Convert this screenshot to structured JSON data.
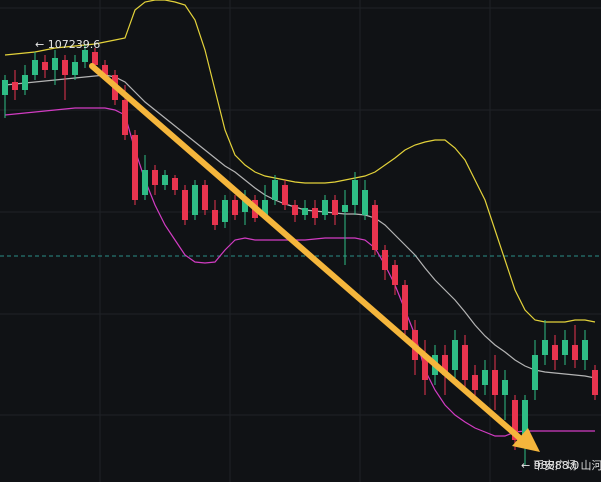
{
  "chart_data": {
    "type": "candlestick",
    "high_label": "← 107239.6",
    "low_label": "← 98888.0",
    "watermark": "币安广场 山河",
    "ylim": [
      98500,
      108140
    ],
    "up_color": "#2ebd85",
    "down_color": "#e8344e",
    "candles": {
      "open": [
        106240,
        106500,
        106340,
        106640,
        106900,
        106740,
        106940,
        106640,
        106900,
        107100,
        106840,
        106640,
        106140,
        105440,
        104240,
        104740,
        104440,
        104580,
        104340,
        103840,
        104440,
        103940,
        103700,
        104140,
        103900,
        104140,
        103840,
        104140,
        104440,
        104040,
        103840,
        103980,
        103840,
        104140,
        103900,
        104040,
        103840,
        104040,
        103140,
        102840,
        102440,
        101540,
        101040,
        100640,
        101040,
        100740,
        101240,
        100640,
        100440,
        100740,
        100240,
        100140,
        99340,
        100340,
        101040,
        101240,
        101040,
        101240,
        100940,
        100740
      ],
      "high": [
        106640,
        106740,
        106840,
        107100,
        107040,
        107140,
        107040,
        107040,
        107240,
        107180,
        106940,
        106740,
        106440,
        105540,
        105040,
        104840,
        104740,
        104640,
        104440,
        104540,
        104540,
        104140,
        104240,
        104240,
        104340,
        104240,
        104440,
        104640,
        104540,
        104140,
        104140,
        104140,
        104240,
        104240,
        104340,
        104700,
        104540,
        104140,
        103240,
        102940,
        102540,
        101740,
        101340,
        101240,
        101240,
        101540,
        101440,
        100840,
        100940,
        101040,
        100740,
        100240,
        100240,
        101340,
        101740,
        101440,
        101540,
        101640,
        101540,
        100840
      ],
      "low": [
        105780,
        106140,
        106240,
        106540,
        106580,
        106440,
        106140,
        106540,
        106780,
        106700,
        106540,
        106040,
        105340,
        104040,
        104140,
        104240,
        104340,
        104240,
        103640,
        103740,
        103840,
        103540,
        103580,
        103740,
        103640,
        103700,
        103740,
        104040,
        103940,
        103700,
        103740,
        103640,
        103740,
        103640,
        102840,
        103840,
        103740,
        103040,
        102540,
        102240,
        101340,
        100640,
        100240,
        100440,
        100240,
        100540,
        100340,
        100140,
        100240,
        99940,
        99740,
        99140,
        98840,
        100140,
        100840,
        100740,
        100840,
        100780,
        100740,
        100140
      ],
      "close": [
        106540,
        106340,
        106640,
        106940,
        106740,
        106980,
        106640,
        106900,
        107140,
        106840,
        106640,
        106140,
        105440,
        104140,
        104740,
        104440,
        104640,
        104340,
        103740,
        104440,
        103940,
        103640,
        104140,
        103840,
        104140,
        103780,
        104140,
        104540,
        104040,
        103840,
        103980,
        103780,
        104140,
        103840,
        104040,
        104540,
        104340,
        103140,
        102740,
        102440,
        101540,
        100940,
        100540,
        101040,
        100640,
        101340,
        100540,
        100340,
        100740,
        100240,
        100540,
        99340,
        100140,
        101040,
        101340,
        100940,
        101340,
        100940,
        101340,
        100240
      ]
    },
    "bands": [
      {
        "color": "#e3d23a",
        "values": [
          107040,
          107060,
          107080,
          107100,
          107140,
          107180,
          107200,
          107220,
          107240,
          107260,
          107300,
          107340,
          107380,
          107940,
          108100,
          108140,
          108140,
          108100,
          108040,
          107740,
          107140,
          106340,
          105540,
          105040,
          104840,
          104700,
          104620,
          104580,
          104540,
          104500,
          104480,
          104480,
          104480,
          104500,
          104540,
          104580,
          104620,
          104700,
          104840,
          104980,
          105140,
          105240,
          105300,
          105340,
          105340,
          105180,
          104940,
          104540,
          104140,
          103540,
          102940,
          102340,
          101940,
          101740,
          101700,
          101700,
          101700,
          101740,
          101740,
          101700
        ]
      },
      {
        "color": "#b4b4b4",
        "values": [
          106440,
          106460,
          106480,
          106500,
          106520,
          106540,
          106560,
          106580,
          106600,
          106620,
          106640,
          106600,
          106500,
          106300,
          106100,
          105940,
          105780,
          105620,
          105460,
          105300,
          105140,
          104980,
          104820,
          104700,
          104540,
          104380,
          104240,
          104140,
          104060,
          104000,
          103940,
          103920,
          103900,
          103880,
          103860,
          103860,
          103840,
          103780,
          103640,
          103440,
          103240,
          103040,
          102780,
          102540,
          102340,
          102140,
          101900,
          101640,
          101420,
          101240,
          101100,
          100940,
          100820,
          100740,
          100700,
          100680,
          100660,
          100640,
          100620,
          100580
        ]
      },
      {
        "color": "#d23cc3",
        "values": [
          105840,
          105860,
          105880,
          105900,
          105920,
          105940,
          105960,
          105980,
          105980,
          105980,
          105980,
          105940,
          105840,
          105140,
          104540,
          104040,
          103640,
          103340,
          103040,
          102900,
          102880,
          102900,
          103140,
          103340,
          103380,
          103340,
          103340,
          103340,
          103340,
          103340,
          103340,
          103360,
          103380,
          103380,
          103380,
          103380,
          103340,
          103180,
          102840,
          102440,
          101940,
          101440,
          100740,
          100340,
          100040,
          99840,
          99700,
          99580,
          99500,
          99420,
          99420,
          99500,
          99520,
          99520,
          99520,
          99520,
          99520,
          99520,
          99520,
          99520
        ]
      }
    ]
  }
}
